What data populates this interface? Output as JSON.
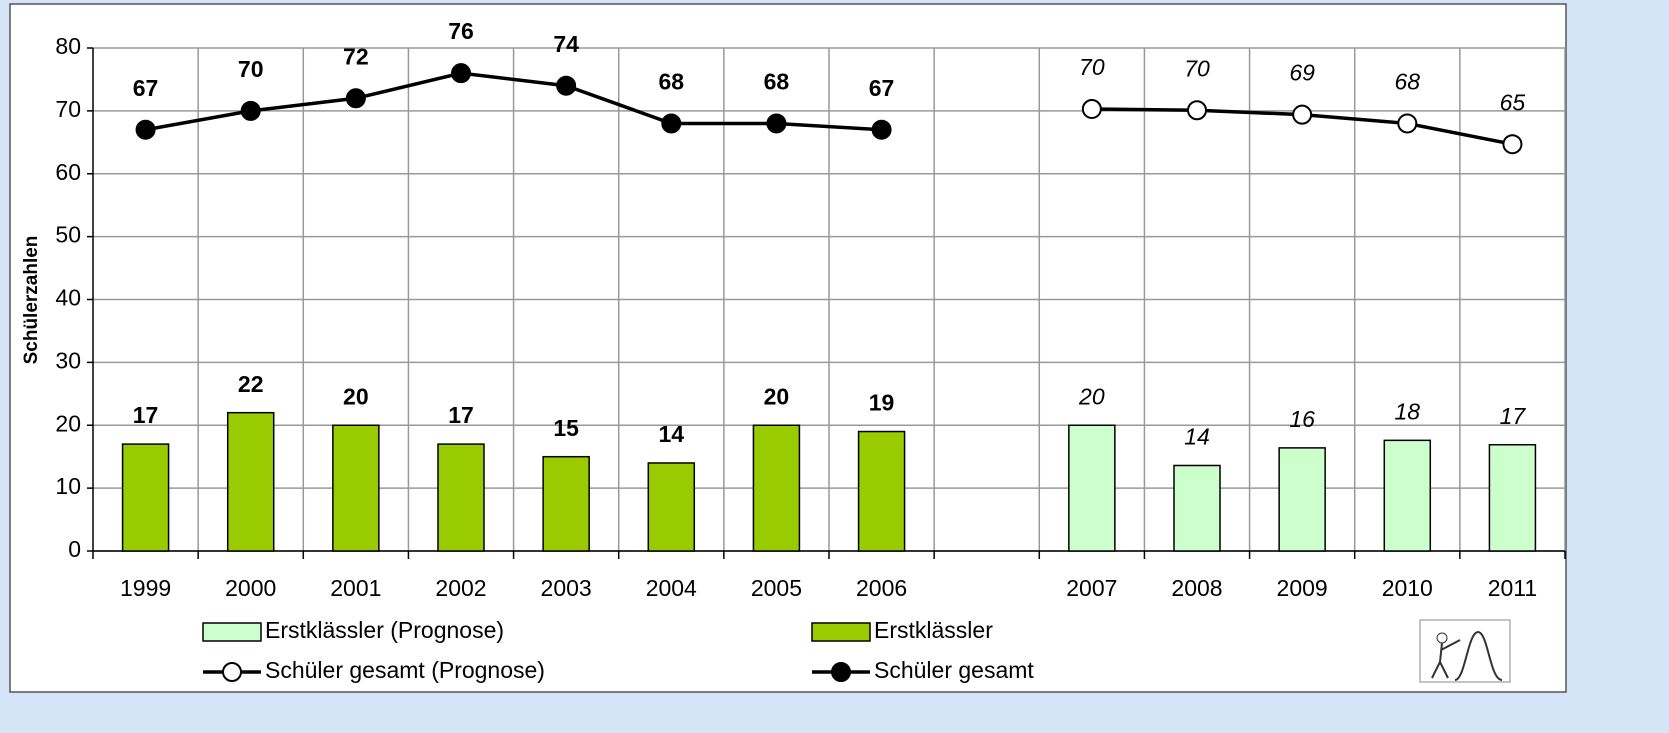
{
  "chart_data": {
    "type": "bar-line",
    "y_label": "Schülerzahlen",
    "categories": [
      "1999",
      "2000",
      "2001",
      "2002",
      "2003",
      "2004",
      "2005",
      "2006",
      null,
      "2007",
      "2008",
      "2009",
      "2010",
      "2011"
    ],
    "ylim": [
      0,
      80
    ],
    "yticks": [
      0,
      10,
      20,
      30,
      40,
      50,
      60,
      70,
      80
    ],
    "grid": true,
    "series": [
      {
        "name": "Erstklässler (Prognose)",
        "type": "bar",
        "color": "#ccffcc",
        "label_style": "italic",
        "values": [
          null,
          null,
          null,
          null,
          null,
          null,
          null,
          null,
          null,
          20,
          13.6,
          16.4,
          17.6,
          16.9
        ],
        "value_labels": [
          null,
          null,
          null,
          null,
          null,
          null,
          null,
          null,
          null,
          "20",
          "14",
          "16",
          "18",
          "17"
        ]
      },
      {
        "name": "Erstklässler",
        "type": "bar",
        "color": "#99cc00",
        "label_style": "bold",
        "values": [
          17,
          22,
          20,
          17,
          15,
          14,
          20,
          19,
          null,
          null,
          null,
          null,
          null,
          null
        ]
      },
      {
        "name": "Schüler gesamt (Prognose)",
        "type": "line",
        "color": "#000000",
        "marker_fill": "#ffffff",
        "label_style": "italic",
        "values": [
          null,
          null,
          null,
          null,
          null,
          null,
          null,
          null,
          null,
          70.3,
          70.1,
          69.4,
          68,
          64.7
        ],
        "value_labels": [
          null,
          null,
          null,
          null,
          null,
          null,
          null,
          null,
          null,
          "70",
          "70",
          "69",
          "68",
          "65"
        ]
      },
      {
        "name": "Schüler gesamt",
        "type": "line",
        "color": "#000000",
        "marker_fill": "#000000",
        "label_style": "bold",
        "values": [
          67,
          70,
          72,
          76,
          74,
          68,
          68,
          67,
          null,
          null,
          null,
          null,
          null,
          null
        ]
      }
    ]
  }
}
